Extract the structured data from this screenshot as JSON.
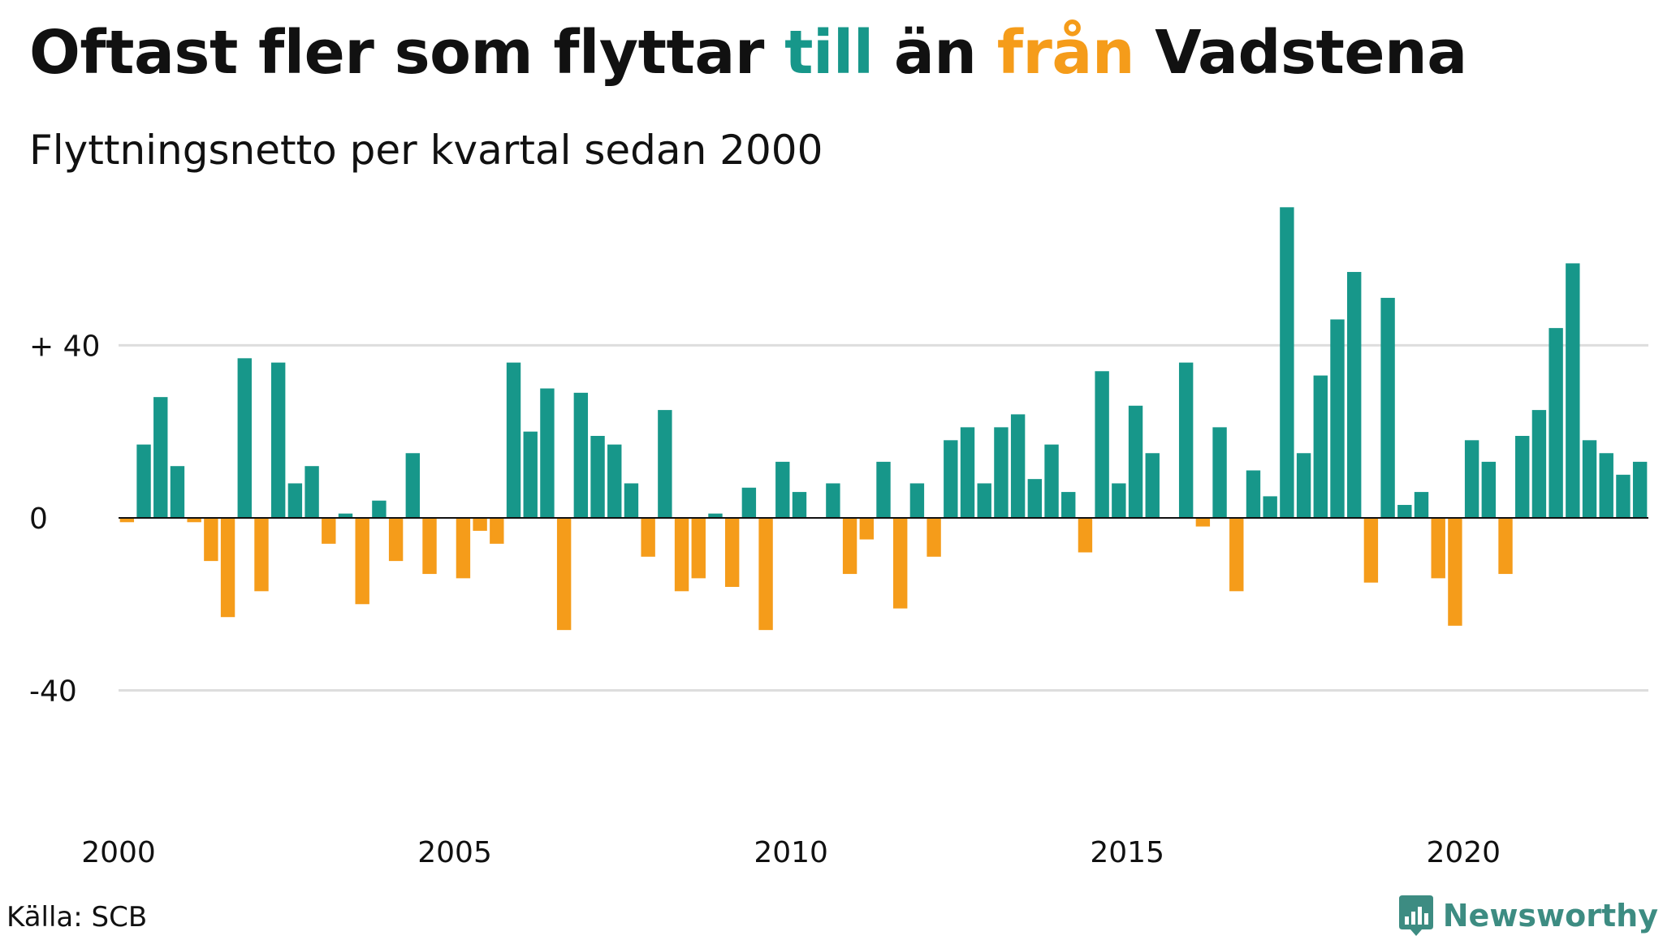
{
  "header": {
    "title_parts": [
      {
        "text": "Oftast fler som flyttar ",
        "color": "#111111"
      },
      {
        "text": "till",
        "color": "#17978a"
      },
      {
        "text": " än ",
        "color": "#111111"
      },
      {
        "text": "från",
        "color": "#f59c1a"
      },
      {
        "text": " Vadstena",
        "color": "#111111"
      }
    ],
    "subtitle": "Flyttningsnetto per kvartal sedan 2000"
  },
  "footer": {
    "source": "Källa: SCB",
    "brand": "Newsworthy",
    "brand_icon": "newsworthy-logo-icon",
    "brand_color": "#3d8c82"
  },
  "colors": {
    "positive": "#17978a",
    "negative": "#f59c1a",
    "grid": "#dddddd",
    "zero_line": "#111111",
    "text": "#111111"
  },
  "chart_data": {
    "type": "bar",
    "title": "Oftast fler som flyttar till än från Vadstena",
    "subtitle": "Flyttningsnetto per kvartal sedan 2000",
    "xlabel": "",
    "ylabel": "",
    "start": "2000 Q1",
    "frequency": "quarterly",
    "ylim": [
      -70,
      73
    ],
    "yticks": [
      {
        "value": 40,
        "label": "+ 40"
      },
      {
        "value": 0,
        "label": "0"
      },
      {
        "value": -40,
        "label": "-40"
      }
    ],
    "xticks": [
      {
        "value": 2000,
        "label": "2000"
      },
      {
        "value": 2005,
        "label": "2005"
      },
      {
        "value": 2010,
        "label": "2010"
      },
      {
        "value": 2015,
        "label": "2015"
      },
      {
        "value": 2020,
        "label": "2020"
      }
    ],
    "grid": true,
    "legend": "none",
    "values": [
      -1,
      17,
      28,
      12,
      -1,
      -10,
      -23,
      37,
      -17,
      36,
      8,
      12,
      -6,
      1,
      -20,
      4,
      -10,
      15,
      -13,
      0,
      -14,
      -3,
      -6,
      36,
      20,
      30,
      -26,
      29,
      19,
      17,
      8,
      -9,
      25,
      -17,
      -14,
      1,
      -16,
      7,
      -26,
      13,
      6,
      0,
      8,
      -13,
      -5,
      13,
      -21,
      8,
      -9,
      18,
      21,
      8,
      21,
      24,
      9,
      17,
      6,
      -8,
      34,
      8,
      26,
      15,
      0,
      36,
      -2,
      21,
      -17,
      11,
      5,
      72,
      15,
      33,
      46,
      57,
      -15,
      51,
      3,
      6,
      -14,
      -25,
      18,
      13,
      -13,
      19,
      25,
      44,
      59,
      18,
      15,
      10,
      13
    ]
  }
}
